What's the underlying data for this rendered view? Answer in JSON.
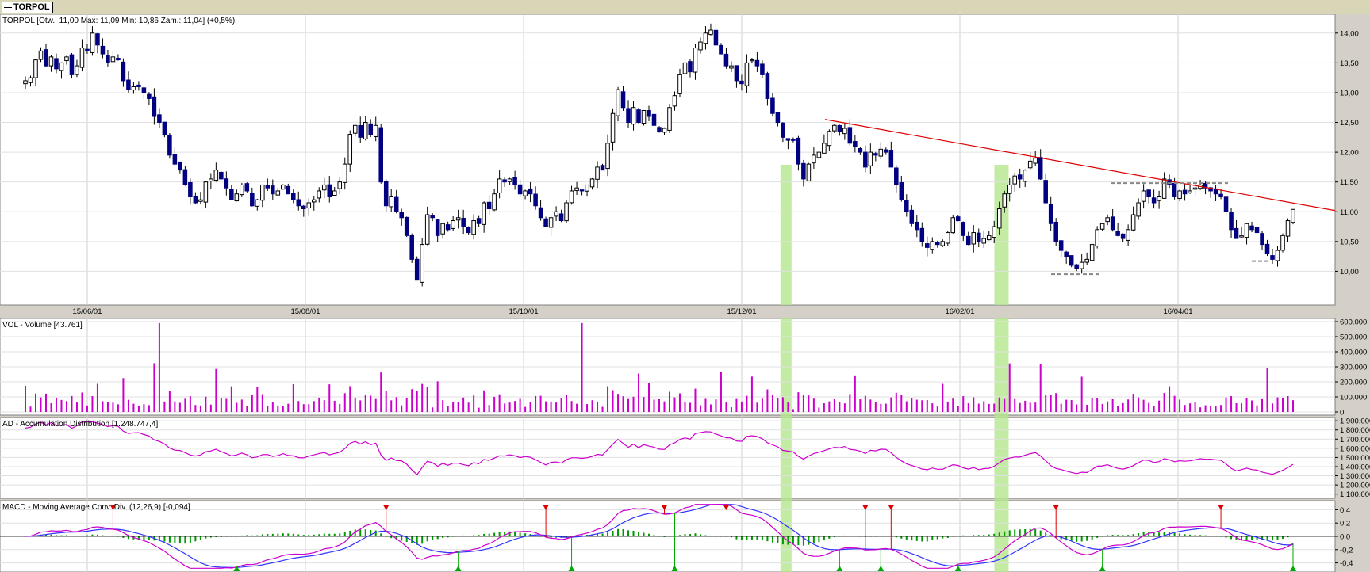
{
  "window": {
    "tab_label": "TORPOL"
  },
  "panels": {
    "price": {
      "label": "TORPOL [Otw.: 11,00  Max: 11,09  Min: 10,86  Zam.: 11,04] (+0,5%)"
    },
    "volume": {
      "label": "VOL - Volume [43.761]"
    },
    "ad": {
      "label": "AD - Accumulation Distribution [1.248.747,4]"
    },
    "macd": {
      "label": "MACD - Moving Average Conv. Div. (12,26,9) [-0,094]"
    }
  },
  "colors": {
    "bear_candle": "#000080",
    "bull_candle": "#ffffff",
    "volume_bar": "#cc00cc",
    "ad_line": "#cc00cc",
    "macd_line": "#cc00cc",
    "signal_line": "#3333ff",
    "histogram": "#009900",
    "trendline": "#dd0000",
    "highlight": "#b4e68c",
    "sell_marker": "#dd0000",
    "buy_marker": "#00aa00"
  },
  "chart_data": [
    {
      "type": "candlestick",
      "title": "TORPOL [Otw.: 11,00  Max: 11,09  Min: 10,86  Zam.: 11,04] (+0,5%)",
      "x_tick_labels": [
        "15/06/01",
        "15/08/01",
        "15/10/01",
        "15/12/01",
        "16/02/01",
        "16/04/01"
      ],
      "y_tick_labels": [
        "10,00",
        "10,50",
        "11,00",
        "11,50",
        "12,00",
        "12,50",
        "13,00",
        "13,50",
        "14,00"
      ],
      "ylim": [
        9.5,
        14.25
      ],
      "grid": true,
      "close": [
        13.2,
        13.25,
        13.55,
        13.7,
        13.45,
        13.6,
        13.4,
        13.5,
        13.6,
        13.3,
        13.45,
        13.75,
        13.7,
        14.0,
        13.8,
        13.65,
        13.5,
        13.6,
        13.55,
        13.2,
        13.05,
        13.1,
        13.1,
        13.0,
        12.9,
        12.6,
        12.5,
        12.3,
        11.95,
        11.8,
        11.7,
        11.45,
        11.25,
        11.15,
        11.2,
        11.5,
        11.55,
        11.7,
        11.55,
        11.4,
        11.2,
        11.3,
        11.45,
        11.35,
        11.1,
        11.2,
        11.45,
        11.4,
        11.3,
        11.35,
        11.45,
        11.3,
        11.2,
        11.1,
        11.05,
        11.15,
        11.2,
        11.35,
        11.45,
        11.25,
        11.35,
        11.5,
        11.8,
        12.3,
        12.45,
        12.25,
        12.5,
        12.3,
        12.45,
        11.5,
        11.1,
        11.25,
        11.0,
        10.9,
        10.6,
        10.2,
        9.85,
        10.45,
        10.95,
        10.9,
        10.6,
        10.8,
        10.7,
        10.85,
        10.9,
        10.75,
        10.65,
        10.85,
        10.8,
        11.15,
        11.05,
        11.3,
        11.55,
        11.5,
        11.55,
        11.45,
        11.3,
        11.35,
        11.3,
        11.1,
        10.9,
        10.75,
        10.9,
        11.0,
        10.85,
        11.15,
        11.35,
        11.4,
        11.35,
        11.45,
        11.55,
        11.75,
        11.7,
        12.15,
        12.65,
        13.05,
        12.75,
        12.5,
        12.75,
        12.5,
        12.7,
        12.6,
        12.45,
        12.35,
        12.4,
        12.75,
        12.95,
        13.3,
        13.5,
        13.35,
        13.75,
        13.85,
        14.0,
        14.05,
        13.8,
        13.65,
        13.45,
        13.45,
        13.2,
        13.15,
        13.5,
        13.55,
        13.45,
        13.3,
        12.9,
        12.65,
        12.5,
        12.25,
        12.2,
        12.2,
        11.8,
        11.55,
        11.8,
        11.95,
        12.0,
        12.15,
        12.35,
        12.45,
        12.35,
        12.4,
        12.15,
        12.1,
        12.0,
        11.75,
        12.0,
        11.95,
        12.05,
        12.0,
        11.75,
        11.45,
        11.2,
        11.0,
        10.8,
        10.7,
        10.5,
        10.4,
        10.5,
        10.45,
        10.5,
        10.65,
        10.9,
        10.85,
        10.6,
        10.45,
        10.65,
        10.5,
        10.55,
        10.6,
        10.75,
        11.05,
        11.3,
        11.45,
        11.6,
        11.55,
        11.7,
        11.85,
        11.9,
        11.55,
        11.15,
        10.8,
        10.5,
        10.35,
        10.25,
        10.1,
        10.05,
        10.15,
        10.2,
        10.45,
        10.7,
        10.8,
        10.9,
        10.7,
        10.6,
        10.55,
        10.7,
        10.95,
        11.15,
        11.35,
        11.25,
        11.15,
        11.25,
        11.55,
        11.45,
        11.25,
        11.35,
        11.3,
        11.35,
        11.4,
        11.45,
        11.4,
        11.35,
        11.3,
        11.25,
        11.0,
        10.7,
        10.55,
        10.6,
        10.8,
        10.7,
        10.65,
        10.45,
        10.3,
        10.2,
        10.35,
        10.6,
        10.85,
        11.04
      ],
      "markers_price": {
        "trendline_from": 12.55,
        "trendline_to": 11.08,
        "resistance": 11.48,
        "support_1": 9.95,
        "support_2": 10.17
      }
    },
    {
      "type": "bar",
      "title": "VOL - Volume [43.761]",
      "y_tick_labels": [
        "0",
        "100.000",
        "200.000",
        "300.000",
        "400.000",
        "500.000",
        "600.000"
      ],
      "ylim": [
        0,
        600000
      ]
    },
    {
      "type": "line",
      "title": "AD - Accumulation Distribution [1.248.747,4]",
      "y_tick_labels": [
        "1.100.000",
        "1.200.000",
        "1.300.000",
        "1.400.000",
        "1.500.000",
        "1.600.000",
        "1.700.000",
        "1.800.000",
        "1.900.000"
      ],
      "ylim": [
        1080000,
        1910000
      ]
    },
    {
      "type": "line",
      "title": "MACD - Moving Average Conv. Div. (12,26,9) [-0,094]",
      "y_tick_labels": [
        "-0,4",
        "-0,2",
        "0,0",
        "0,2",
        "0,4"
      ],
      "ylim": [
        -0.5,
        0.5
      ],
      "highlight_bands": [
        0.6,
        0.77,
        1.08,
        1.24,
        1.46
      ]
    }
  ]
}
